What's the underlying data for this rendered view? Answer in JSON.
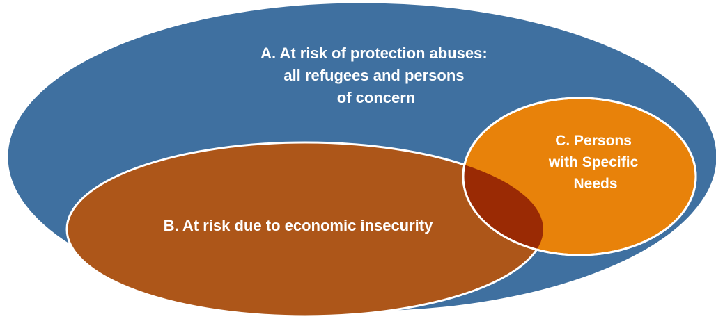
{
  "colors": {
    "background": "#ffffff",
    "ring_a": "#3f70a0",
    "ring_b": "#ad5619",
    "ring_c": "#e8820a",
    "overlap_bc": "#9a2a04",
    "outline": "#ffffff",
    "label_text": "#ffffff"
  },
  "diagram": {
    "circle_a": {
      "label_lines": [
        "A. At risk of protection abuses:",
        "all refugees and persons",
        "of concern"
      ]
    },
    "circle_b": {
      "label_lines": [
        "B. At risk due to economic insecurity"
      ]
    },
    "circle_c": {
      "label_lines": [
        "C. Persons",
        "with Specific",
        "Needs"
      ]
    }
  }
}
